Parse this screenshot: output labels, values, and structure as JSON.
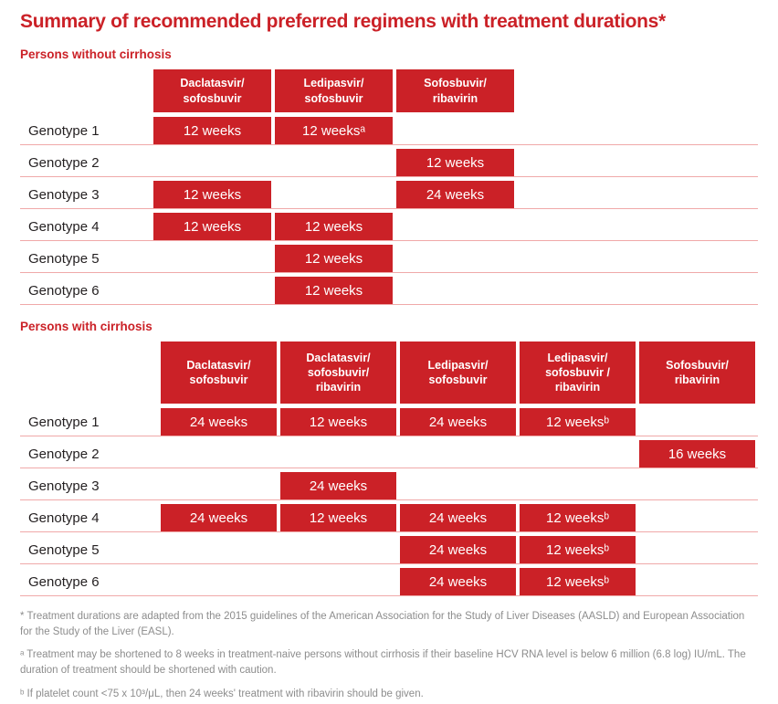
{
  "title": "Summary of recommended preferred regimens with treatment durations*",
  "colors": {
    "red": "#cb2127",
    "row_line": "#f0a9a9",
    "footnote_text": "#8d8d8d",
    "label_text": "#231f20"
  },
  "sections": [
    {
      "heading": "Persons without cirrhosis",
      "columns": [
        "Daclatasvir/\nsofosbuvir",
        "Ledipasvir/\nsofosbuvir",
        "Sofosbuvir/\nribavirin"
      ],
      "rows": [
        {
          "label": "Genotype 1",
          "cells": [
            "12 weeks",
            "12 weeksᵃ",
            ""
          ]
        },
        {
          "label": "Genotype 2",
          "cells": [
            "",
            "",
            "12 weeks"
          ]
        },
        {
          "label": "Genotype 3",
          "cells": [
            "12 weeks",
            "",
            "24 weeks"
          ]
        },
        {
          "label": "Genotype 4",
          "cells": [
            "12 weeks",
            "12 weeks",
            ""
          ]
        },
        {
          "label": "Genotype 5",
          "cells": [
            "",
            "12 weeks",
            ""
          ]
        },
        {
          "label": "Genotype 6",
          "cells": [
            "",
            "12 weeks",
            ""
          ]
        }
      ]
    },
    {
      "heading": "Persons with cirrhosis",
      "columns": [
        "Daclatasvir/\nsofosbuvir",
        "Daclatasvir/\nsofosbuvir/\nribavirin",
        "Ledipasvir/\nsofosbuvir",
        "Ledipasvir/\nsofosbuvir /\nribavirin",
        "Sofosbuvir/\nribavirin"
      ],
      "rows": [
        {
          "label": "Genotype 1",
          "cells": [
            "24 weeks",
            "12 weeks",
            "24 weeks",
            "12 weeksᵇ",
            ""
          ]
        },
        {
          "label": "Genotype 2",
          "cells": [
            "",
            "",
            "",
            "",
            "16 weeks"
          ]
        },
        {
          "label": "Genotype 3",
          "cells": [
            "",
            "24 weeks",
            "",
            "",
            ""
          ]
        },
        {
          "label": "Genotype 4",
          "cells": [
            "24 weeks",
            "12 weeks",
            "24 weeks",
            "12 weeksᵇ",
            ""
          ]
        },
        {
          "label": "Genotype 5",
          "cells": [
            "",
            "",
            "24 weeks",
            "12 weeksᵇ",
            ""
          ]
        },
        {
          "label": "Genotype 6",
          "cells": [
            "",
            "",
            "24 weeks",
            "12 weeksᵇ",
            ""
          ]
        }
      ]
    }
  ],
  "footnotes": [
    "* Treatment durations are adapted from the 2015 guidelines of the American Association for the Study of Liver Diseases (AASLD) and European Association for the Study of the Liver (EASL).",
    "ᵃ Treatment may be shortened to 8 weeks in treatment-naive persons without cirrhosis if their baseline HCV RNA level is below 6 million (6.8 log) IU/mL. The duration of treatment should be shortened with caution.",
    "ᵇ If platelet count <75 x 10³/μL, then 24 weeks' treatment with ribavirin should be given."
  ]
}
